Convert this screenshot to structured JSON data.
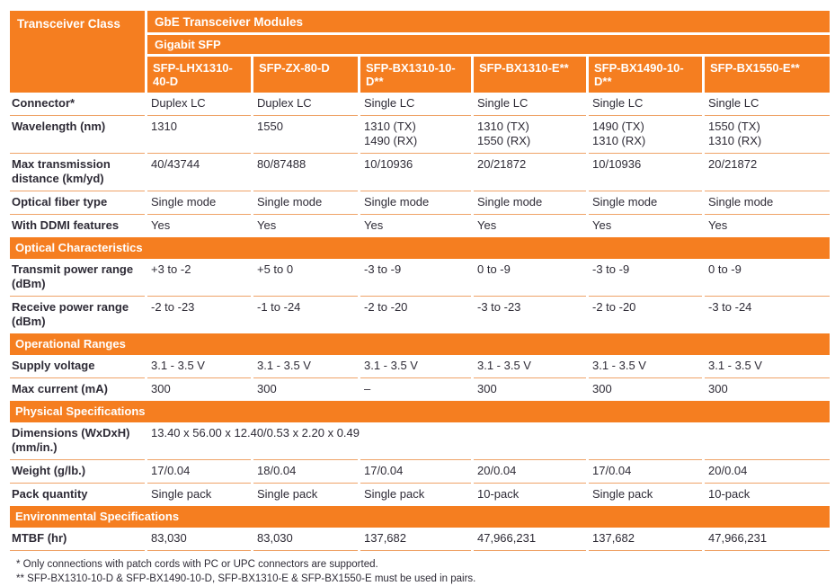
{
  "colors": {
    "accent_orange": "#F57E20",
    "row_divider": "#EFA368",
    "text_dark": "#2E2B36",
    "header_text": "#FFFFFF"
  },
  "header": {
    "corner_label": "Transceiver Class",
    "group_title": "GbE Transceiver Modules",
    "subgroup_title": "Gigabit SFP",
    "models": [
      "SFP-LHX1310-40-D",
      "SFP-ZX-80-D",
      "SFP-BX1310-10-D**",
      "SFP-BX1310-E**",
      "SFP-BX1490-10-D**",
      "SFP-BX1550-E**"
    ]
  },
  "table": {
    "rows": [
      {
        "type": "data",
        "label": "Connector*",
        "values": [
          "Duplex LC",
          "Duplex LC",
          "Single LC",
          "Single LC",
          "Single LC",
          "Single LC"
        ]
      },
      {
        "type": "data",
        "label": "Wavelength (nm)",
        "values": [
          "1310",
          "1550",
          "1310 (TX)\n1490 (RX)",
          "1310 (TX)\n1550 (RX)",
          "1490 (TX)\n1310 (RX)",
          "1550 (TX)\n1310 (RX)"
        ]
      },
      {
        "type": "data",
        "label": "Max transmission distance (km/yd)",
        "values": [
          "40/43744",
          "80/87488",
          "10/10936",
          "20/21872",
          "10/10936",
          "20/21872"
        ]
      },
      {
        "type": "data",
        "label": "Optical fiber type",
        "values": [
          "Single mode",
          "Single mode",
          "Single mode",
          "Single mode",
          "Single mode",
          "Single mode"
        ]
      },
      {
        "type": "data",
        "label": "With DDMI features",
        "values": [
          "Yes",
          "Yes",
          "Yes",
          "Yes",
          "Yes",
          "Yes"
        ]
      },
      {
        "type": "section",
        "title": "Optical Characteristics"
      },
      {
        "type": "data",
        "label": "Transmit power range (dBm)",
        "values": [
          "+3 to -2",
          "+5 to 0",
          "-3 to -9",
          "0 to -9",
          "-3 to -9",
          "0 to -9"
        ]
      },
      {
        "type": "data",
        "label": "Receive power range (dBm)",
        "values": [
          "-2 to -23",
          "-1 to -24",
          "-2 to -20",
          "-3 to -23",
          "-2 to -20",
          "-3 to -24"
        ]
      },
      {
        "type": "section",
        "title": "Operational Ranges"
      },
      {
        "type": "data",
        "label": "Supply voltage",
        "values": [
          "3.1 - 3.5 V",
          "3.1 - 3.5 V",
          "3.1 - 3.5 V",
          "3.1 - 3.5 V",
          "3.1 - 3.5 V",
          "3.1 - 3.5 V"
        ]
      },
      {
        "type": "data",
        "label": "Max current (mA)",
        "values": [
          "300",
          "300",
          "–",
          "300",
          "300",
          "300"
        ]
      },
      {
        "type": "section",
        "title": "Physical Specifications"
      },
      {
        "type": "span",
        "label": "Dimensions (WxDxH)(mm/in.)",
        "value": "13.40 x 56.00 x 12.40/0.53 x 2.20 x 0.49"
      },
      {
        "type": "data",
        "label": "Weight (g/lb.)",
        "values": [
          "17/0.04",
          "18/0.04",
          "17/0.04",
          "20/0.04",
          "17/0.04",
          "20/0.04"
        ]
      },
      {
        "type": "data",
        "label": "Pack quantity",
        "values": [
          "Single pack",
          "Single pack",
          "Single pack",
          "10-pack",
          "Single pack",
          "10-pack"
        ]
      },
      {
        "type": "section",
        "title": "Environmental Specifications"
      },
      {
        "type": "data",
        "label": "MTBF (hr)",
        "values": [
          "83,030",
          "83,030",
          "137,682",
          "47,966,231",
          "137,682",
          "47,966,231"
        ]
      }
    ]
  },
  "footnotes": [
    "* Only connections with patch cords with PC or UPC connectors are supported.",
    "** SFP-BX1310-10-D & SFP-BX1490-10-D, SFP-BX1310-E & SFP-BX1550-E must be used in pairs."
  ]
}
